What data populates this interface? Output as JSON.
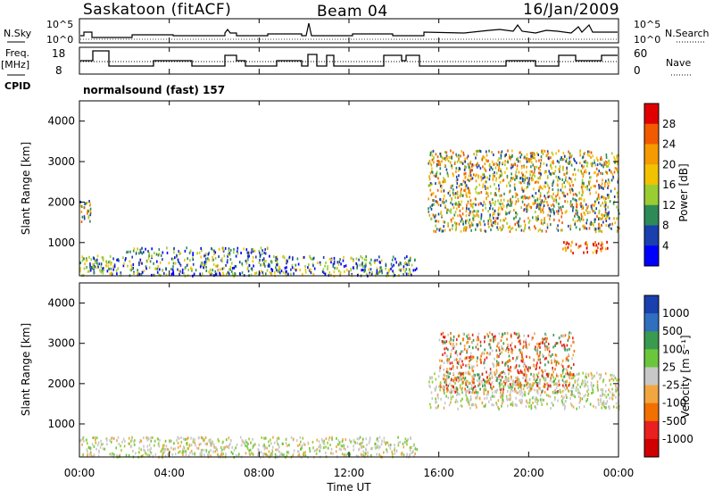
{
  "header": {
    "station": "Saskatoon (fitACF)",
    "beam": "Beam 04",
    "date": "16/Jan/2009"
  },
  "params": {
    "nsky_label": "N.Sky",
    "nsky_ticks": [
      "10^5",
      "10^0"
    ],
    "nsearch_label": "N.Search",
    "nsearch_ticks": [
      "10^5",
      "10^0"
    ],
    "freq_label": "Freq.",
    "freq_unit": "[MHz]",
    "freq_ticks": [
      "18",
      "8"
    ],
    "nave_label": "Nave",
    "nave_ticks": [
      "60",
      "0"
    ],
    "cpid_label": "CPID",
    "cpid_text": "normalsound (fast) 157"
  },
  "chart_data": [
    {
      "type": "heatmap",
      "panel": "power",
      "ylabel": "Slant Range [km]",
      "ylim": [
        180,
        4500
      ],
      "y_ticks": [
        "1000",
        "2000",
        "3000",
        "4000"
      ],
      "colorbar_label": "Power [dB]",
      "colorbar_ticks": [
        "28",
        "24",
        "20",
        "16",
        "12",
        "8",
        "4"
      ],
      "colorbar_colors": [
        "#e00000",
        "#f25a00",
        "#f59a00",
        "#f2c200",
        "#9acd32",
        "#2e8b57",
        "#1a3fae",
        "#0000ff"
      ],
      "regions": [
        {
          "t": [
            0.0,
            0.5
          ],
          "r": [
            1500,
            2100
          ],
          "level": "mid"
        },
        {
          "t": [
            0.0,
            15.0
          ],
          "r": [
            200,
            700
          ],
          "level": "low"
        },
        {
          "t": [
            2.0,
            8.5
          ],
          "r": [
            700,
            900
          ],
          "level": "low"
        },
        {
          "t": [
            15.5,
            24.0
          ],
          "r": [
            1300,
            3300
          ],
          "level": "mid"
        },
        {
          "t": [
            21.5,
            23.5
          ],
          "r": [
            750,
            1050
          ],
          "level": "high"
        }
      ]
    },
    {
      "type": "heatmap",
      "panel": "velocity",
      "ylabel": "Slant Range [km]",
      "ylim": [
        180,
        4500
      ],
      "y_ticks": [
        "1000",
        "2000",
        "3000",
        "4000"
      ],
      "colorbar_label": "Velocity [m s⁻¹]",
      "colorbar_ticks": [
        "1000",
        "500",
        "100",
        "25",
        "-25",
        "-100",
        "-500",
        "-1000"
      ],
      "colorbar_colors": [
        "#1a3fae",
        "#2e6fc0",
        "#3a9a50",
        "#6ac73c",
        "#c8c8c8",
        "#f2a640",
        "#f27000",
        "#e82020",
        "#d00000"
      ],
      "regions": [
        {
          "t": [
            0.0,
            15.0
          ],
          "r": [
            200,
            700
          ],
          "level": "ground"
        },
        {
          "t": [
            15.5,
            24.0
          ],
          "r": [
            1400,
            2300
          ],
          "level": "ground"
        },
        {
          "t": [
            16.0,
            22.0
          ],
          "r": [
            1800,
            3300
          ],
          "level": "negative"
        }
      ]
    }
  ],
  "time_axis": {
    "xlabel": "Time UT",
    "ticks": [
      "00:00",
      "04:00",
      "08:00",
      "12:00",
      "16:00",
      "20:00",
      "00:00"
    ],
    "xlim": [
      0,
      24
    ]
  }
}
